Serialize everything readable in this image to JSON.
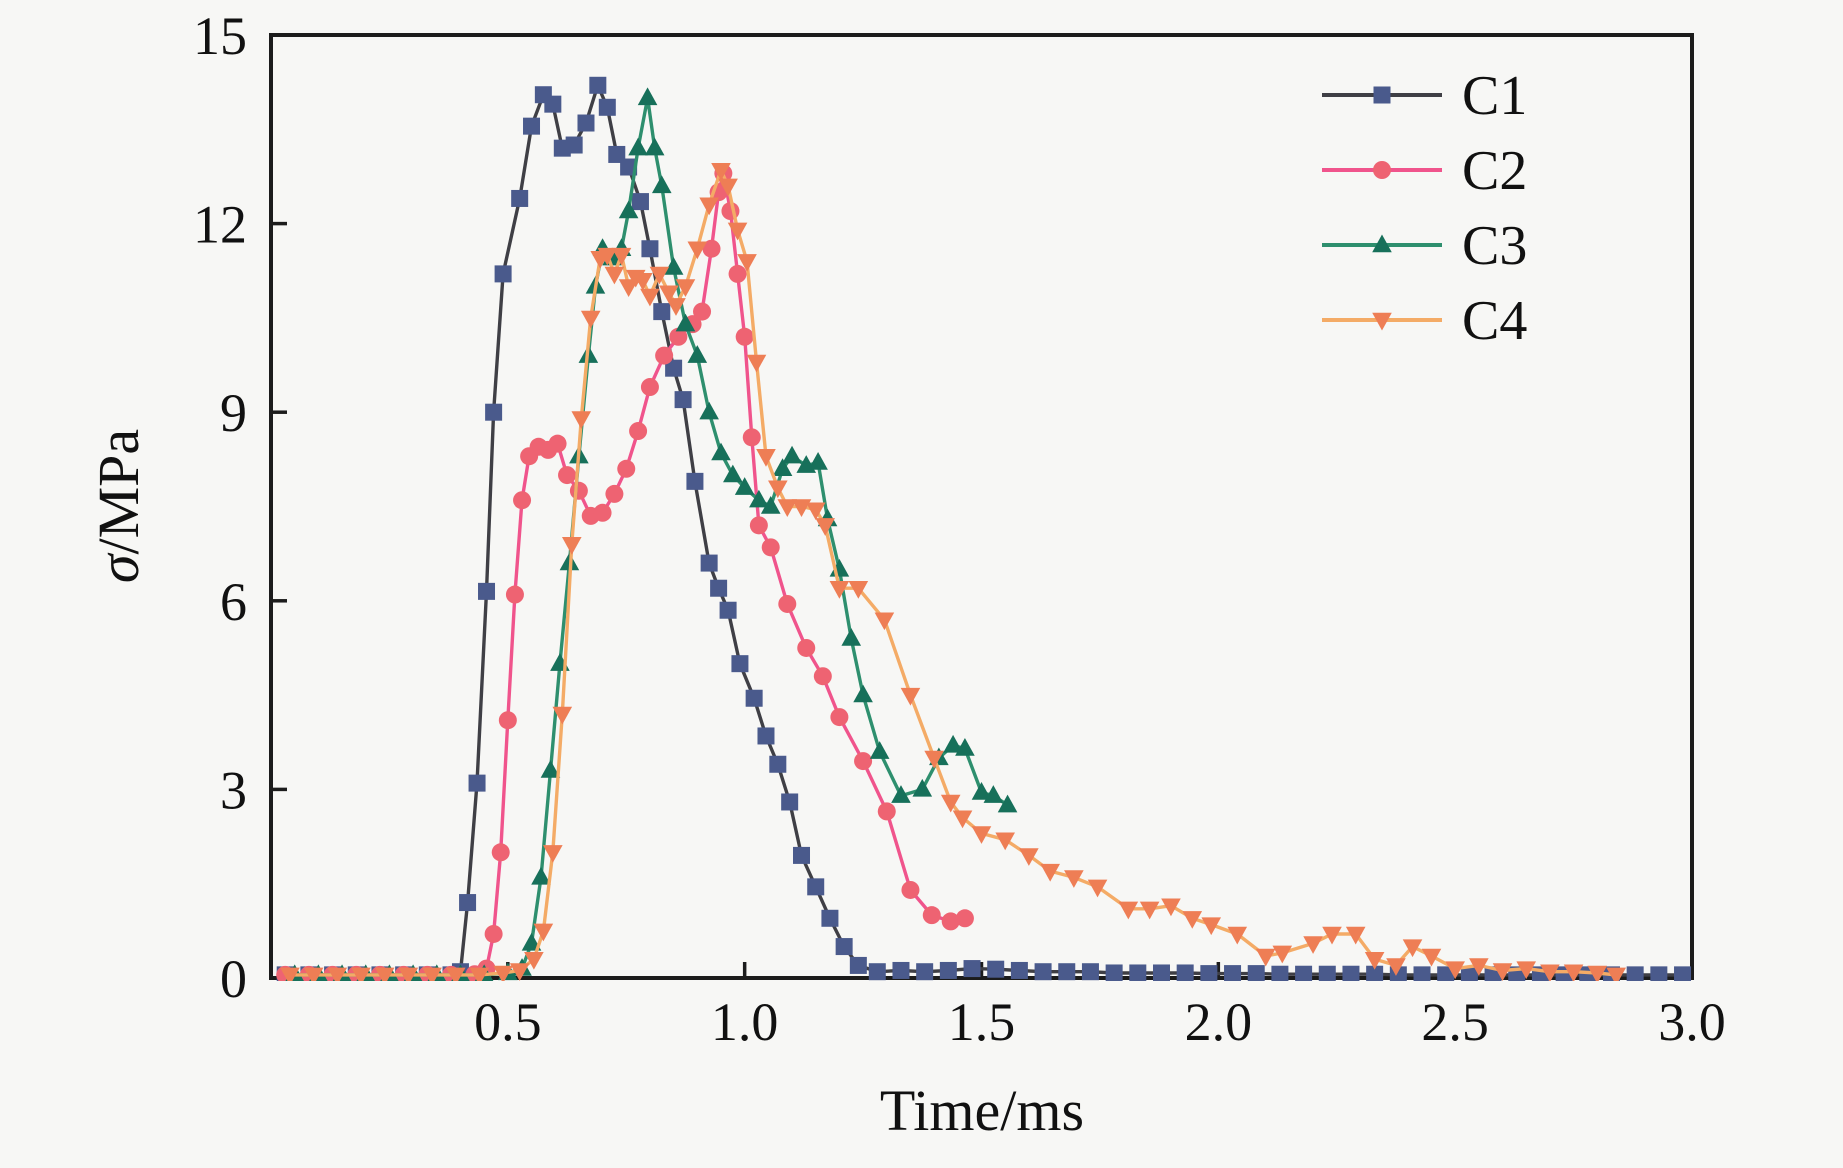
{
  "figure": {
    "background": "#f7f7f5",
    "axis_color": "#1c1c1c",
    "text_color": "#111111"
  },
  "chart_data": {
    "type": "line",
    "title": "",
    "xlabel": "Time/ms",
    "ylabel": "σ/MPa",
    "xlim": [
      0,
      3.0
    ],
    "ylim": [
      0,
      15
    ],
    "grid": false,
    "legend_position": "top-right",
    "xticks": [
      {
        "v": 0.5,
        "label": "0.5"
      },
      {
        "v": 1.0,
        "label": "1.0"
      },
      {
        "v": 1.5,
        "label": "1.5"
      },
      {
        "v": 2.0,
        "label": "2.0"
      },
      {
        "v": 2.5,
        "label": "2.5"
      },
      {
        "v": 3.0,
        "label": "3.0"
      }
    ],
    "yticks": [
      {
        "v": 0,
        "label": "0"
      },
      {
        "v": 3,
        "label": "3"
      },
      {
        "v": 6,
        "label": "6"
      },
      {
        "v": 9,
        "label": "9"
      },
      {
        "v": 12,
        "label": "12"
      },
      {
        "v": 15,
        "label": "15"
      }
    ],
    "series": [
      {
        "name": "C1",
        "line_color": "#3f3f45",
        "marker": "square",
        "marker_color": "#4a5a8c",
        "points": [
          [
            0.03,
            0.05
          ],
          [
            0.08,
            0.05
          ],
          [
            0.13,
            0.05
          ],
          [
            0.18,
            0.05
          ],
          [
            0.23,
            0.05
          ],
          [
            0.28,
            0.05
          ],
          [
            0.33,
            0.05
          ],
          [
            0.38,
            0.05
          ],
          [
            0.4,
            0.1
          ],
          [
            0.415,
            1.2
          ],
          [
            0.435,
            3.1
          ],
          [
            0.455,
            6.15
          ],
          [
            0.47,
            9.0
          ],
          [
            0.49,
            11.2
          ],
          [
            0.525,
            12.4
          ],
          [
            0.55,
            13.55
          ],
          [
            0.575,
            14.05
          ],
          [
            0.595,
            13.9
          ],
          [
            0.615,
            13.2
          ],
          [
            0.64,
            13.25
          ],
          [
            0.665,
            13.6
          ],
          [
            0.69,
            14.2
          ],
          [
            0.71,
            13.85
          ],
          [
            0.73,
            13.1
          ],
          [
            0.755,
            12.9
          ],
          [
            0.78,
            12.35
          ],
          [
            0.8,
            11.6
          ],
          [
            0.825,
            10.6
          ],
          [
            0.85,
            9.7
          ],
          [
            0.87,
            9.2
          ],
          [
            0.895,
            7.9
          ],
          [
            0.925,
            6.6
          ],
          [
            0.945,
            6.2
          ],
          [
            0.965,
            5.85
          ],
          [
            0.99,
            5.0
          ],
          [
            1.02,
            4.45
          ],
          [
            1.045,
            3.85
          ],
          [
            1.07,
            3.4
          ],
          [
            1.095,
            2.8
          ],
          [
            1.12,
            1.95
          ],
          [
            1.15,
            1.45
          ],
          [
            1.18,
            0.95
          ],
          [
            1.21,
            0.5
          ],
          [
            1.24,
            0.2
          ],
          [
            1.28,
            0.1
          ],
          [
            1.33,
            0.12
          ],
          [
            1.38,
            0.1
          ],
          [
            1.43,
            0.12
          ],
          [
            1.48,
            0.15
          ],
          [
            1.53,
            0.14
          ],
          [
            1.58,
            0.12
          ],
          [
            1.63,
            0.1
          ],
          [
            1.68,
            0.1
          ],
          [
            1.73,
            0.1
          ],
          [
            1.78,
            0.08
          ],
          [
            1.83,
            0.08
          ],
          [
            1.88,
            0.08
          ],
          [
            1.93,
            0.08
          ],
          [
            1.98,
            0.07
          ],
          [
            2.03,
            0.07
          ],
          [
            2.08,
            0.07
          ],
          [
            2.13,
            0.06
          ],
          [
            2.18,
            0.06
          ],
          [
            2.23,
            0.06
          ],
          [
            2.28,
            0.06
          ],
          [
            2.33,
            0.06
          ],
          [
            2.38,
            0.05
          ],
          [
            2.43,
            0.05
          ],
          [
            2.48,
            0.05
          ],
          [
            2.53,
            0.05
          ],
          [
            2.58,
            0.05
          ],
          [
            2.63,
            0.05
          ],
          [
            2.68,
            0.05
          ],
          [
            2.73,
            0.05
          ],
          [
            2.78,
            0.05
          ],
          [
            2.83,
            0.05
          ],
          [
            2.88,
            0.05
          ],
          [
            2.93,
            0.05
          ],
          [
            2.98,
            0.05
          ]
        ]
      },
      {
        "name": "C2",
        "line_color": "#f0548c",
        "marker": "circle",
        "marker_color": "#ee6372",
        "points": [
          [
            0.03,
            0.05
          ],
          [
            0.08,
            0.05
          ],
          [
            0.13,
            0.05
          ],
          [
            0.18,
            0.05
          ],
          [
            0.23,
            0.05
          ],
          [
            0.28,
            0.05
          ],
          [
            0.33,
            0.05
          ],
          [
            0.38,
            0.05
          ],
          [
            0.43,
            0.06
          ],
          [
            0.455,
            0.15
          ],
          [
            0.47,
            0.7
          ],
          [
            0.485,
            2.0
          ],
          [
            0.5,
            4.1
          ],
          [
            0.515,
            6.1
          ],
          [
            0.53,
            7.6
          ],
          [
            0.545,
            8.3
          ],
          [
            0.565,
            8.45
          ],
          [
            0.585,
            8.4
          ],
          [
            0.605,
            8.5
          ],
          [
            0.625,
            8.0
          ],
          [
            0.65,
            7.75
          ],
          [
            0.675,
            7.35
          ],
          [
            0.7,
            7.4
          ],
          [
            0.725,
            7.7
          ],
          [
            0.75,
            8.1
          ],
          [
            0.775,
            8.7
          ],
          [
            0.8,
            9.4
          ],
          [
            0.83,
            9.9
          ],
          [
            0.86,
            10.2
          ],
          [
            0.89,
            10.4
          ],
          [
            0.91,
            10.6
          ],
          [
            0.93,
            11.6
          ],
          [
            0.945,
            12.5
          ],
          [
            0.955,
            12.8
          ],
          [
            0.97,
            12.2
          ],
          [
            0.985,
            11.2
          ],
          [
            1.0,
            10.2
          ],
          [
            1.015,
            8.6
          ],
          [
            1.03,
            7.2
          ],
          [
            1.055,
            6.85
          ],
          [
            1.09,
            5.95
          ],
          [
            1.13,
            5.25
          ],
          [
            1.165,
            4.8
          ],
          [
            1.2,
            4.15
          ],
          [
            1.25,
            3.45
          ],
          [
            1.3,
            2.65
          ],
          [
            1.35,
            1.4
          ],
          [
            1.395,
            1.0
          ],
          [
            1.435,
            0.9
          ],
          [
            1.465,
            0.95
          ]
        ]
      },
      {
        "name": "C3",
        "line_color": "#2e8f6e",
        "marker": "triangle-up",
        "marker_color": "#17705a",
        "points": [
          [
            0.05,
            0.05
          ],
          [
            0.1,
            0.05
          ],
          [
            0.15,
            0.05
          ],
          [
            0.2,
            0.05
          ],
          [
            0.25,
            0.05
          ],
          [
            0.3,
            0.05
          ],
          [
            0.35,
            0.05
          ],
          [
            0.4,
            0.05
          ],
          [
            0.45,
            0.05
          ],
          [
            0.5,
            0.08
          ],
          [
            0.53,
            0.15
          ],
          [
            0.55,
            0.55
          ],
          [
            0.57,
            1.6
          ],
          [
            0.59,
            3.3
          ],
          [
            0.61,
            5.0
          ],
          [
            0.63,
            6.6
          ],
          [
            0.65,
            8.3
          ],
          [
            0.67,
            9.9
          ],
          [
            0.685,
            11.0
          ],
          [
            0.7,
            11.6
          ],
          [
            0.72,
            11.45
          ],
          [
            0.74,
            11.6
          ],
          [
            0.755,
            12.2
          ],
          [
            0.775,
            13.2
          ],
          [
            0.795,
            14.0
          ],
          [
            0.81,
            13.2
          ],
          [
            0.825,
            12.6
          ],
          [
            0.85,
            11.3
          ],
          [
            0.875,
            10.4
          ],
          [
            0.9,
            9.9
          ],
          [
            0.925,
            9.0
          ],
          [
            0.95,
            8.35
          ],
          [
            0.975,
            8.0
          ],
          [
            1.0,
            7.8
          ],
          [
            1.03,
            7.6
          ],
          [
            1.055,
            7.5
          ],
          [
            1.08,
            8.1
          ],
          [
            1.1,
            8.3
          ],
          [
            1.13,
            8.15
          ],
          [
            1.155,
            8.2
          ],
          [
            1.175,
            7.3
          ],
          [
            1.2,
            6.5
          ],
          [
            1.225,
            5.4
          ],
          [
            1.25,
            4.5
          ],
          [
            1.285,
            3.6
          ],
          [
            1.33,
            2.9
          ],
          [
            1.375,
            3.0
          ],
          [
            1.41,
            3.5
          ],
          [
            1.44,
            3.7
          ],
          [
            1.465,
            3.65
          ],
          [
            1.5,
            2.95
          ],
          [
            1.525,
            2.9
          ],
          [
            1.555,
            2.75
          ]
        ]
      },
      {
        "name": "C4",
        "line_color": "#f4ab66",
        "marker": "triangle-down",
        "marker_color": "#ee7e55",
        "points": [
          [
            0.04,
            0.05
          ],
          [
            0.09,
            0.05
          ],
          [
            0.14,
            0.05
          ],
          [
            0.19,
            0.05
          ],
          [
            0.24,
            0.05
          ],
          [
            0.29,
            0.05
          ],
          [
            0.34,
            0.05
          ],
          [
            0.39,
            0.05
          ],
          [
            0.44,
            0.05
          ],
          [
            0.49,
            0.08
          ],
          [
            0.525,
            0.12
          ],
          [
            0.555,
            0.3
          ],
          [
            0.575,
            0.75
          ],
          [
            0.595,
            2.0
          ],
          [
            0.615,
            4.2
          ],
          [
            0.635,
            6.9
          ],
          [
            0.655,
            8.9
          ],
          [
            0.675,
            10.5
          ],
          [
            0.695,
            11.45
          ],
          [
            0.71,
            11.5
          ],
          [
            0.725,
            11.2
          ],
          [
            0.74,
            11.5
          ],
          [
            0.755,
            11.0
          ],
          [
            0.77,
            11.15
          ],
          [
            0.785,
            11.1
          ],
          [
            0.8,
            10.85
          ],
          [
            0.82,
            11.2
          ],
          [
            0.84,
            10.9
          ],
          [
            0.855,
            10.7
          ],
          [
            0.875,
            11.0
          ],
          [
            0.9,
            11.6
          ],
          [
            0.925,
            12.3
          ],
          [
            0.95,
            12.85
          ],
          [
            0.965,
            12.6
          ],
          [
            0.985,
            11.9
          ],
          [
            1.005,
            11.4
          ],
          [
            1.025,
            9.8
          ],
          [
            1.045,
            8.3
          ],
          [
            1.07,
            7.8
          ],
          [
            1.09,
            7.5
          ],
          [
            1.12,
            7.5
          ],
          [
            1.15,
            7.45
          ],
          [
            1.17,
            7.2
          ],
          [
            1.2,
            6.2
          ],
          [
            1.24,
            6.2
          ],
          [
            1.295,
            5.7
          ],
          [
            1.35,
            4.5
          ],
          [
            1.4,
            3.5
          ],
          [
            1.435,
            2.8
          ],
          [
            1.46,
            2.55
          ],
          [
            1.5,
            2.3
          ],
          [
            1.55,
            2.2
          ],
          [
            1.6,
            1.95
          ],
          [
            1.645,
            1.7
          ],
          [
            1.695,
            1.6
          ],
          [
            1.745,
            1.45
          ],
          [
            1.81,
            1.1
          ],
          [
            1.855,
            1.1
          ],
          [
            1.9,
            1.15
          ],
          [
            1.945,
            0.95
          ],
          [
            1.985,
            0.85
          ],
          [
            2.04,
            0.7
          ],
          [
            2.1,
            0.35
          ],
          [
            2.135,
            0.4
          ],
          [
            2.2,
            0.55
          ],
          [
            2.24,
            0.7
          ],
          [
            2.29,
            0.7
          ],
          [
            2.33,
            0.3
          ],
          [
            2.375,
            0.2
          ],
          [
            2.41,
            0.5
          ],
          [
            2.45,
            0.35
          ],
          [
            2.5,
            0.15
          ],
          [
            2.55,
            0.2
          ],
          [
            2.6,
            0.12
          ],
          [
            2.65,
            0.15
          ],
          [
            2.7,
            0.1
          ],
          [
            2.75,
            0.1
          ],
          [
            2.8,
            0.08
          ],
          [
            2.84,
            0.05
          ]
        ]
      }
    ]
  }
}
